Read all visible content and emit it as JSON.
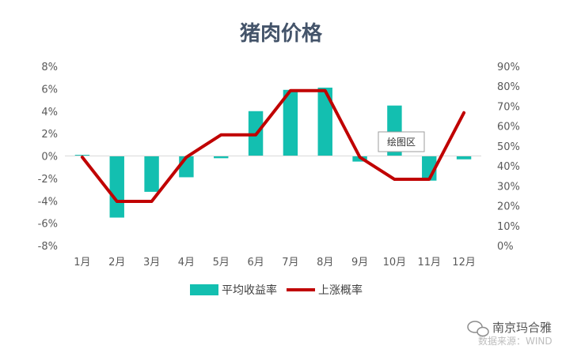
{
  "chart_data": {
    "type": "bar+line",
    "title": "猪肉价格",
    "categories": [
      "1月",
      "2月",
      "3月",
      "4月",
      "5月",
      "6月",
      "7月",
      "8月",
      "9月",
      "10月",
      "11月",
      "12月"
    ],
    "series": [
      {
        "name": "平均收益率",
        "type": "bar",
        "axis": "left",
        "color": "#13bfb0",
        "values": [
          0.1,
          -5.5,
          -3.2,
          -1.9,
          -0.2,
          4.0,
          5.9,
          6.1,
          -0.5,
          4.5,
          -2.2,
          -0.3
        ]
      },
      {
        "name": "上涨概率",
        "type": "line",
        "axis": "right",
        "color": "#c00000",
        "values": [
          44.4,
          22.2,
          22.2,
          44.4,
          55.6,
          55.6,
          77.8,
          77.8,
          44.4,
          33.3,
          33.3,
          66.7
        ]
      }
    ],
    "y_left": {
      "min": -8,
      "max": 8,
      "step": 2,
      "tick_labels": [
        "-8%",
        "-6%",
        "-4%",
        "-2%",
        "0%",
        "2%",
        "4%",
        "6%",
        "8%"
      ]
    },
    "y_right": {
      "min": 0,
      "max": 90,
      "step": 10,
      "tick_labels": [
        "0%",
        "10%",
        "20%",
        "30%",
        "40%",
        "50%",
        "60%",
        "70%",
        "80%",
        "90%"
      ]
    },
    "legend_position": "bottom",
    "grid": false
  },
  "tooltip": {
    "text": "绘图区"
  },
  "watermark": {
    "brand": "南京玛合雅",
    "source": "数据来源：WIND"
  }
}
